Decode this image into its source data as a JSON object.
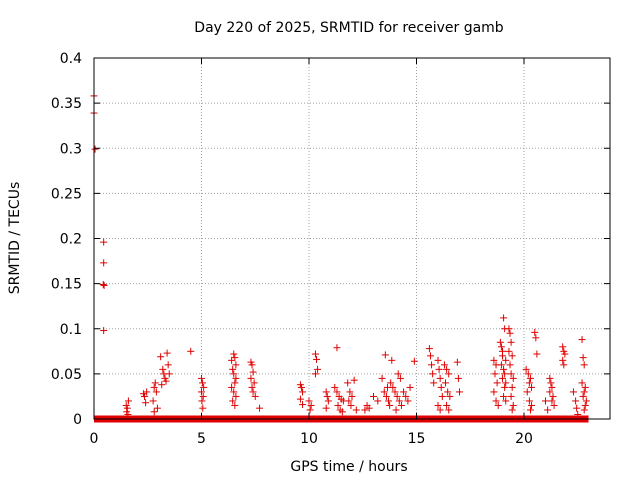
{
  "chart_data": {
    "type": "scatter",
    "title": "Day 220 of 2025, SRMTID for receiver gamb",
    "xlabel": "GPS time / hours",
    "ylabel": "SRMTID / TECUs",
    "xlim": [
      0,
      24
    ],
    "ylim": [
      0,
      0.4
    ],
    "xticks": [
      0,
      5,
      10,
      15,
      20
    ],
    "xtick_labels": [
      "0",
      "5",
      "10",
      "15",
      "20"
    ],
    "yticks": [
      0,
      0.05,
      0.1,
      0.15,
      0.2,
      0.25,
      0.3,
      0.35,
      0.4
    ],
    "ytick_labels": [
      "0",
      "0.05",
      "0.1",
      "0.15",
      "0.2",
      "0.25",
      "0.3",
      "0.35",
      "0.4"
    ],
    "grid": true,
    "marker": "+",
    "color": "#e00000",
    "baseline_segments": [
      [
        0,
        23.0
      ]
    ],
    "series": [
      {
        "name": "SRMTID",
        "points": [
          [
            0.0,
            0.358
          ],
          [
            0.0,
            0.339
          ],
          [
            0.05,
            0.299
          ],
          [
            0.45,
            0.196
          ],
          [
            0.45,
            0.173
          ],
          [
            0.43,
            0.149
          ],
          [
            0.47,
            0.148
          ],
          [
            0.45,
            0.098
          ],
          [
            1.5,
            0.015
          ],
          [
            1.55,
            0.012
          ],
          [
            1.6,
            0.02
          ],
          [
            1.52,
            0.008
          ],
          [
            1.58,
            0.005
          ],
          [
            2.3,
            0.028
          ],
          [
            2.35,
            0.025
          ],
          [
            2.4,
            0.018
          ],
          [
            2.45,
            0.03
          ],
          [
            2.8,
            0.035
          ],
          [
            2.85,
            0.04
          ],
          [
            2.9,
            0.03
          ],
          [
            2.75,
            0.02
          ],
          [
            2.95,
            0.012
          ],
          [
            2.8,
            0.008
          ],
          [
            3.1,
            0.069
          ],
          [
            3.2,
            0.055
          ],
          [
            3.25,
            0.05
          ],
          [
            3.3,
            0.045
          ],
          [
            3.15,
            0.038
          ],
          [
            3.4,
            0.073
          ],
          [
            3.45,
            0.06
          ],
          [
            3.5,
            0.05
          ],
          [
            3.35,
            0.042
          ],
          [
            4.5,
            0.075
          ],
          [
            5.0,
            0.045
          ],
          [
            5.05,
            0.04
          ],
          [
            5.1,
            0.035
          ],
          [
            5.0,
            0.03
          ],
          [
            5.08,
            0.025
          ],
          [
            5.02,
            0.02
          ],
          [
            5.06,
            0.012
          ],
          [
            6.4,
            0.065
          ],
          [
            6.5,
            0.072
          ],
          [
            6.55,
            0.068
          ],
          [
            6.6,
            0.06
          ],
          [
            6.45,
            0.055
          ],
          [
            6.5,
            0.05
          ],
          [
            6.6,
            0.045
          ],
          [
            6.55,
            0.04
          ],
          [
            6.4,
            0.035
          ],
          [
            6.5,
            0.03
          ],
          [
            6.6,
            0.025
          ],
          [
            6.45,
            0.02
          ],
          [
            6.55,
            0.015
          ],
          [
            7.3,
            0.063
          ],
          [
            7.35,
            0.06
          ],
          [
            7.4,
            0.052
          ],
          [
            7.3,
            0.045
          ],
          [
            7.45,
            0.04
          ],
          [
            7.35,
            0.035
          ],
          [
            7.4,
            0.03
          ],
          [
            7.5,
            0.025
          ],
          [
            7.7,
            0.012
          ],
          [
            9.6,
            0.038
          ],
          [
            9.65,
            0.035
          ],
          [
            9.7,
            0.03
          ],
          [
            9.6,
            0.022
          ],
          [
            9.7,
            0.016
          ],
          [
            10.0,
            0.02
          ],
          [
            10.1,
            0.015
          ],
          [
            10.05,
            0.01
          ],
          [
            10.3,
            0.072
          ],
          [
            10.35,
            0.066
          ],
          [
            10.4,
            0.055
          ],
          [
            10.3,
            0.05
          ],
          [
            10.8,
            0.03
          ],
          [
            10.85,
            0.025
          ],
          [
            10.9,
            0.02
          ],
          [
            10.8,
            0.012
          ],
          [
            11.3,
            0.079
          ],
          [
            11.2,
            0.035
          ],
          [
            11.3,
            0.03
          ],
          [
            11.4,
            0.025
          ],
          [
            11.5,
            0.022
          ],
          [
            11.6,
            0.02
          ],
          [
            11.35,
            0.015
          ],
          [
            11.45,
            0.01
          ],
          [
            11.55,
            0.008
          ],
          [
            11.8,
            0.04
          ],
          [
            11.9,
            0.03
          ],
          [
            12.0,
            0.025
          ],
          [
            11.85,
            0.02
          ],
          [
            11.95,
            0.015
          ],
          [
            12.1,
            0.043
          ],
          [
            12.2,
            0.01
          ],
          [
            12.6,
            0.01
          ],
          [
            12.7,
            0.015
          ],
          [
            12.8,
            0.012
          ],
          [
            13.0,
            0.025
          ],
          [
            13.2,
            0.02
          ],
          [
            13.4,
            0.045
          ],
          [
            13.5,
            0.03
          ],
          [
            13.6,
            0.025
          ],
          [
            13.7,
            0.02
          ],
          [
            13.55,
            0.071
          ],
          [
            13.65,
            0.035
          ],
          [
            13.75,
            0.015
          ],
          [
            13.8,
            0.04
          ],
          [
            13.9,
            0.035
          ],
          [
            14.0,
            0.03
          ],
          [
            14.1,
            0.025
          ],
          [
            14.2,
            0.02
          ],
          [
            14.3,
            0.015
          ],
          [
            13.85,
            0.065
          ],
          [
            14.05,
            0.01
          ],
          [
            14.15,
            0.05
          ],
          [
            14.25,
            0.045
          ],
          [
            14.4,
            0.03
          ],
          [
            14.5,
            0.025
          ],
          [
            14.6,
            0.02
          ],
          [
            14.7,
            0.035
          ],
          [
            14.9,
            0.064
          ],
          [
            15.6,
            0.078
          ],
          [
            15.65,
            0.07
          ],
          [
            15.7,
            0.06
          ],
          [
            15.75,
            0.05
          ],
          [
            15.8,
            0.04
          ],
          [
            16.0,
            0.065
          ],
          [
            16.05,
            0.055
          ],
          [
            16.1,
            0.045
          ],
          [
            16.15,
            0.035
          ],
          [
            16.2,
            0.025
          ],
          [
            16.0,
            0.015
          ],
          [
            16.1,
            0.01
          ],
          [
            16.3,
            0.06
          ],
          [
            16.4,
            0.055
          ],
          [
            16.5,
            0.05
          ],
          [
            16.35,
            0.04
          ],
          [
            16.45,
            0.03
          ],
          [
            16.55,
            0.025
          ],
          [
            16.4,
            0.015
          ],
          [
            16.5,
            0.01
          ],
          [
            16.9,
            0.063
          ],
          [
            16.95,
            0.045
          ],
          [
            17.0,
            0.03
          ],
          [
            18.6,
            0.065
          ],
          [
            18.7,
            0.06
          ],
          [
            18.65,
            0.05
          ],
          [
            18.75,
            0.04
          ],
          [
            18.6,
            0.03
          ],
          [
            18.7,
            0.02
          ],
          [
            18.8,
            0.015
          ],
          [
            18.9,
            0.085
          ],
          [
            18.95,
            0.08
          ],
          [
            19.0,
            0.075
          ],
          [
            19.05,
            0.112
          ],
          [
            19.1,
            0.1
          ],
          [
            19.0,
            0.07
          ],
          [
            19.15,
            0.065
          ],
          [
            18.95,
            0.06
          ],
          [
            19.05,
            0.055
          ],
          [
            19.1,
            0.05
          ],
          [
            19.0,
            0.045
          ],
          [
            19.15,
            0.04
          ],
          [
            19.1,
            0.035
          ],
          [
            19.05,
            0.025
          ],
          [
            19.15,
            0.02
          ],
          [
            19.3,
            0.1
          ],
          [
            19.35,
            0.095
          ],
          [
            19.4,
            0.085
          ],
          [
            19.3,
            0.075
          ],
          [
            19.45,
            0.07
          ],
          [
            19.35,
            0.06
          ],
          [
            19.4,
            0.05
          ],
          [
            19.5,
            0.045
          ],
          [
            19.45,
            0.035
          ],
          [
            19.4,
            0.025
          ],
          [
            19.5,
            0.015
          ],
          [
            19.45,
            0.01
          ],
          [
            20.1,
            0.055
          ],
          [
            20.2,
            0.05
          ],
          [
            20.3,
            0.045
          ],
          [
            20.25,
            0.04
          ],
          [
            20.35,
            0.035
          ],
          [
            20.15,
            0.03
          ],
          [
            20.25,
            0.02
          ],
          [
            20.35,
            0.015
          ],
          [
            20.3,
            0.01
          ],
          [
            20.5,
            0.096
          ],
          [
            20.55,
            0.09
          ],
          [
            20.6,
            0.072
          ],
          [
            21.0,
            0.02
          ],
          [
            21.1,
            0.01
          ],
          [
            21.2,
            0.045
          ],
          [
            21.25,
            0.04
          ],
          [
            21.3,
            0.035
          ],
          [
            21.2,
            0.03
          ],
          [
            21.35,
            0.025
          ],
          [
            21.3,
            0.02
          ],
          [
            21.4,
            0.015
          ],
          [
            21.8,
            0.08
          ],
          [
            21.85,
            0.075
          ],
          [
            21.9,
            0.072
          ],
          [
            21.8,
            0.065
          ],
          [
            21.85,
            0.06
          ],
          [
            22.3,
            0.03
          ],
          [
            22.4,
            0.02
          ],
          [
            22.45,
            0.012
          ],
          [
            22.5,
            0.005
          ],
          [
            22.7,
            0.088
          ],
          [
            22.75,
            0.068
          ],
          [
            22.8,
            0.06
          ],
          [
            22.7,
            0.04
          ],
          [
            22.85,
            0.035
          ],
          [
            22.8,
            0.03
          ],
          [
            22.75,
            0.025
          ],
          [
            22.9,
            0.02
          ],
          [
            22.85,
            0.015
          ],
          [
            22.8,
            0.01
          ]
        ]
      }
    ]
  }
}
